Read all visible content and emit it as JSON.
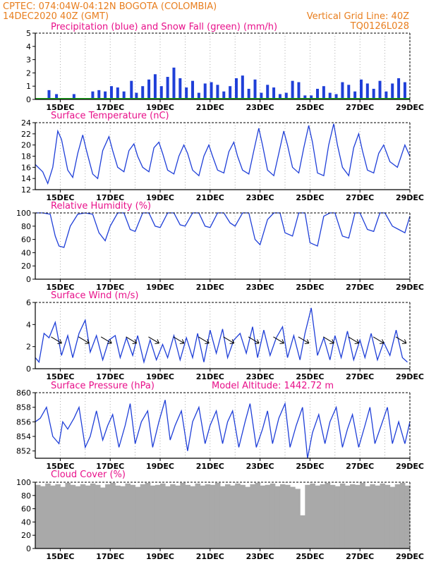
{
  "header": {
    "line1_left": "CPTEC:   074:04W-04:12N   BOGOTA (COLOMBIA)",
    "line2_left": "14DEC2020 40Z (GMT)",
    "line2_right": "Vertical Grid Line: 40Z",
    "line3_right": "TQ0126L028"
  },
  "colors": {
    "header": "#e87e1e",
    "panel_title": "#e8108a",
    "series": "#1f3fd8",
    "snow": "#1aa61a",
    "cloud": "#a9a9a9"
  },
  "x_labels": [
    "15DEC",
    "17DEC",
    "19DEC",
    "21DEC",
    "23DEC",
    "25DEC",
    "27DEC",
    "29DEC"
  ],
  "chart_data": [
    {
      "type": "bar",
      "title": "Precipitation (blue) and Snow Fall (green) (mm/h)",
      "ylim": [
        0,
        5
      ],
      "yticks": [
        "0",
        "1",
        "2",
        "3",
        "4",
        "5"
      ],
      "series": [
        {
          "name": "Precipitation"
        },
        {
          "name": "Snow Fall"
        }
      ],
      "t": [
        0.55,
        0.85,
        1.05,
        1.3,
        1.55,
        2.05,
        2.3,
        2.55,
        2.8,
        3.05,
        3.3,
        3.55,
        3.85,
        4.05,
        4.3,
        4.55,
        4.8,
        5.05,
        5.3,
        5.55,
        5.8,
        6.05,
        6.3,
        6.55,
        6.8,
        7.05,
        7.3,
        7.55,
        7.8,
        8.05,
        8.3,
        8.55,
        8.8,
        9.05,
        9.3,
        9.55,
        9.8,
        10.05,
        10.3,
        10.55,
        10.8,
        11.05,
        11.3,
        11.55,
        11.8,
        12.05,
        12.3,
        12.55,
        12.8,
        13.05,
        13.3,
        13.55,
        13.8,
        14.05,
        14.3,
        14.55,
        14.8
      ],
      "values": [
        0.7,
        0.4,
        0,
        0.1,
        0.4,
        0,
        0.6,
        0.7,
        0.6,
        1.0,
        0.9,
        0.6,
        1.4,
        0.5,
        1.0,
        1.5,
        1.9,
        1.0,
        1.7,
        2.4,
        1.6,
        0.9,
        1.4,
        0.5,
        1.2,
        1.3,
        1.1,
        0.6,
        1.0,
        1.6,
        1.8,
        0.8,
        1.5,
        0.5,
        1.1,
        0.9,
        0.4,
        0.5,
        1.4,
        1.3,
        0.3,
        0.3,
        0.8,
        1.0,
        0.5,
        0.4,
        1.3,
        1.1,
        0.6,
        1.5,
        1.2,
        0.8,
        1.4,
        0.6,
        1.2,
        1.6,
        1.3
      ],
      "snow_values": 0,
      "xlabel": "",
      "ylabel": ""
    },
    {
      "type": "line",
      "title": "Surface Temperature (nC)",
      "ylim": [
        12,
        24
      ],
      "yticks": [
        "12",
        "14",
        "16",
        "18",
        "20",
        "22",
        "24"
      ],
      "t": [
        0,
        0.3,
        0.5,
        0.7,
        0.9,
        1.05,
        1.3,
        1.5,
        1.7,
        1.9,
        2.05,
        2.3,
        2.5,
        2.7,
        2.95,
        3.1,
        3.3,
        3.55,
        3.75,
        3.95,
        4.1,
        4.3,
        4.55,
        4.75,
        4.95,
        5.1,
        5.3,
        5.55,
        5.75,
        5.95,
        6.1,
        6.3,
        6.55,
        6.75,
        6.95,
        7.1,
        7.3,
        7.55,
        7.75,
        7.95,
        8.1,
        8.3,
        8.55,
        8.75,
        8.95,
        9.1,
        9.3,
        9.55,
        9.75,
        9.95,
        10.1,
        10.3,
        10.55,
        10.75,
        10.95,
        11.1,
        11.3,
        11.55,
        11.75,
        11.95,
        12.1,
        12.3,
        12.55,
        12.75,
        12.95,
        13.1,
        13.3,
        13.55,
        13.75,
        13.95,
        14.2,
        14.5,
        14.8,
        15.0
      ],
      "values": [
        16.5,
        15.2,
        13.1,
        16.0,
        22.5,
        21.0,
        15.5,
        14.2,
        18.5,
        21.8,
        19.0,
        14.8,
        14.0,
        19.0,
        21.5,
        19.0,
        16.0,
        15.2,
        19.0,
        20.2,
        18.0,
        16.0,
        15.2,
        19.5,
        20.5,
        18.5,
        15.5,
        14.8,
        18.0,
        20.0,
        18.5,
        15.5,
        14.5,
        18.0,
        20.0,
        18.0,
        15.5,
        15.0,
        18.8,
        20.5,
        18.0,
        15.5,
        14.8,
        19.0,
        23.0,
        20.0,
        15.5,
        14.5,
        18.5,
        22.5,
        20.0,
        16.0,
        15.0,
        19.5,
        23.5,
        20.5,
        15.0,
        14.5,
        20.0,
        23.8,
        20.0,
        16.0,
        14.5,
        19.5,
        22.0,
        19.0,
        15.5,
        15.0,
        18.5,
        20.0,
        17.0,
        16.0,
        20.0,
        18.0
      ],
      "xlabel": "",
      "ylabel": ""
    },
    {
      "type": "line",
      "title": "Relative Humidity (%)",
      "ylim": [
        0,
        100
      ],
      "yticks": [
        "0",
        "20",
        "40",
        "60",
        "80",
        "100"
      ],
      "t": [
        0,
        0.3,
        0.6,
        0.8,
        0.95,
        1.15,
        1.4,
        1.7,
        2.0,
        2.3,
        2.55,
        2.8,
        3.0,
        3.3,
        3.55,
        3.8,
        4.0,
        4.3,
        4.55,
        4.8,
        5.0,
        5.3,
        5.55,
        5.8,
        6.0,
        6.3,
        6.55,
        6.8,
        7.0,
        7.3,
        7.55,
        7.8,
        8.0,
        8.3,
        8.55,
        8.8,
        9.0,
        9.3,
        9.55,
        9.8,
        10.0,
        10.3,
        10.55,
        10.8,
        11.0,
        11.3,
        11.55,
        11.8,
        12.0,
        12.3,
        12.55,
        12.8,
        13.0,
        13.3,
        13.55,
        13.8,
        14.0,
        14.3,
        14.55,
        14.8,
        15.0
      ],
      "values": [
        100,
        100,
        98,
        65,
        50,
        48,
        80,
        98,
        100,
        98,
        70,
        58,
        80,
        100,
        100,
        75,
        72,
        100,
        100,
        80,
        78,
        100,
        100,
        82,
        80,
        100,
        100,
        80,
        78,
        100,
        100,
        85,
        80,
        100,
        100,
        60,
        52,
        90,
        100,
        100,
        70,
        65,
        100,
        100,
        55,
        50,
        95,
        100,
        100,
        65,
        62,
        100,
        100,
        75,
        72,
        100,
        100,
        80,
        75,
        70,
        95
      ],
      "xlabel": "",
      "ylabel": ""
    },
    {
      "type": "line",
      "title": "Surface Wind (m/s)",
      "ylim": [
        0,
        6
      ],
      "yticks": [
        "0",
        "2",
        "4",
        "6"
      ],
      "t": [
        0,
        0.15,
        0.35,
        0.55,
        0.8,
        1.05,
        1.3,
        1.5,
        1.75,
        2.0,
        2.2,
        2.45,
        2.7,
        2.95,
        3.2,
        3.4,
        3.65,
        3.9,
        4.1,
        4.35,
        4.6,
        4.85,
        5.1,
        5.3,
        5.55,
        5.8,
        6.05,
        6.3,
        6.5,
        6.75,
        7.0,
        7.25,
        7.5,
        7.7,
        7.95,
        8.2,
        8.45,
        8.7,
        8.9,
        9.15,
        9.4,
        9.65,
        9.9,
        10.1,
        10.35,
        10.6,
        10.8,
        11.05,
        11.3,
        11.55,
        11.8,
        12.0,
        12.25,
        12.5,
        12.75,
        13.0,
        13.2,
        13.45,
        13.7,
        13.95,
        14.2,
        14.45,
        14.7,
        14.9
      ],
      "values": [
        1.0,
        0.6,
        3.2,
        2.8,
        4.2,
        1.2,
        3.0,
        1.0,
        3.2,
        4.4,
        1.5,
        3.0,
        0.8,
        2.6,
        3.0,
        1.0,
        2.8,
        1.2,
        3.0,
        0.6,
        2.6,
        0.8,
        2.2,
        1.0,
        3.0,
        0.8,
        2.8,
        1.0,
        3.2,
        0.6,
        3.5,
        1.4,
        3.6,
        1.0,
        2.6,
        3.2,
        1.4,
        3.8,
        1.0,
        3.5,
        1.2,
        2.8,
        3.8,
        1.0,
        3.0,
        0.8,
        3.2,
        5.5,
        1.2,
        2.8,
        0.8,
        3.0,
        1.0,
        3.4,
        0.8,
        2.6,
        1.0,
        3.2,
        0.8,
        2.4,
        1.2,
        3.5,
        1.0,
        0.6
      ],
      "xlabel": "",
      "ylabel": ""
    },
    {
      "type": "line",
      "title": "Surface Pressure (hPa)",
      "annotation": "Model Altitude: 1442.72 m",
      "ylim": [
        851,
        860
      ],
      "yticks": [
        "852",
        "854",
        "856",
        "858",
        "860"
      ],
      "t": [
        0,
        0.2,
        0.45,
        0.7,
        0.95,
        1.1,
        1.3,
        1.55,
        1.75,
        2.0,
        2.2,
        2.45,
        2.7,
        2.9,
        3.1,
        3.35,
        3.6,
        3.8,
        4.0,
        4.25,
        4.5,
        4.7,
        4.95,
        5.2,
        5.4,
        5.6,
        5.85,
        6.1,
        6.3,
        6.55,
        6.8,
        7.0,
        7.25,
        7.5,
        7.7,
        7.9,
        8.15,
        8.4,
        8.6,
        8.85,
        9.1,
        9.3,
        9.5,
        9.75,
        10.0,
        10.2,
        10.45,
        10.7,
        10.9,
        11.1,
        11.35,
        11.6,
        11.8,
        12.05,
        12.3,
        12.5,
        12.7,
        12.95,
        13.2,
        13.4,
        13.6,
        13.85,
        14.1,
        14.3,
        14.55,
        14.8,
        15.0
      ],
      "values": [
        856.0,
        856.5,
        858.0,
        854.0,
        853.0,
        856.0,
        855.0,
        856.5,
        858.0,
        852.5,
        854.0,
        857.5,
        853.5,
        855.5,
        857.0,
        852.5,
        855.5,
        858.5,
        853.0,
        856.0,
        857.5,
        852.5,
        856.0,
        859.0,
        853.5,
        855.5,
        857.5,
        852.0,
        856.0,
        858.0,
        853.0,
        855.5,
        857.5,
        853.0,
        856.0,
        857.5,
        852.5,
        856.0,
        858.5,
        852.5,
        855.0,
        857.5,
        853.0,
        856.5,
        858.5,
        852.5,
        855.5,
        858.0,
        851.0,
        854.5,
        857.0,
        853.0,
        856.0,
        858.0,
        852.5,
        855.0,
        857.0,
        852.5,
        855.5,
        858.0,
        853.0,
        855.5,
        858.0,
        853.0,
        856.0,
        853.0,
        856.0
      ],
      "xlabel": "",
      "ylabel": ""
    },
    {
      "type": "bar",
      "title": "Cloud Cover (%)",
      "ylim": [
        0,
        100
      ],
      "yticks": [
        "0",
        "20",
        "40",
        "60",
        "80",
        "100"
      ],
      "t": [
        0.1,
        0.3,
        0.5,
        0.7,
        0.9,
        1.1,
        1.3,
        1.5,
        1.7,
        1.9,
        2.1,
        2.3,
        2.5,
        2.7,
        2.9,
        3.1,
        3.3,
        3.5,
        3.7,
        3.9,
        4.1,
        4.3,
        4.5,
        4.7,
        4.9,
        5.1,
        5.3,
        5.5,
        5.7,
        5.9,
        6.1,
        6.3,
        6.5,
        6.7,
        6.9,
        7.1,
        7.3,
        7.5,
        7.7,
        7.9,
        8.1,
        8.3,
        8.5,
        8.7,
        8.9,
        9.1,
        9.3,
        9.5,
        9.7,
        9.9,
        10.1,
        10.3,
        10.5,
        10.7,
        10.9,
        11.1,
        11.3,
        11.5,
        11.7,
        11.9,
        12.1,
        12.3,
        12.5,
        12.7,
        12.9,
        13.1,
        13.3,
        13.5,
        13.7,
        13.9,
        14.1,
        14.3,
        14.5,
        14.7,
        14.9
      ],
      "values": [
        96,
        94,
        98,
        95,
        97,
        93,
        99,
        96,
        94,
        97,
        95,
        98,
        96,
        92,
        97,
        99,
        95,
        94,
        98,
        96,
        93,
        97,
        99,
        95,
        96,
        98,
        94,
        97,
        95,
        99,
        96,
        94,
        98,
        95,
        97,
        96,
        99,
        94,
        97,
        95,
        98,
        96,
        93,
        97,
        99,
        95,
        96,
        98,
        94,
        97,
        96,
        93,
        90,
        50,
        96,
        98,
        95,
        97,
        99,
        96,
        94,
        98,
        95,
        97,
        96,
        99,
        94,
        97,
        95,
        98,
        96,
        93,
        97,
        99,
        95
      ],
      "xlabel": "",
      "ylabel": ""
    }
  ]
}
